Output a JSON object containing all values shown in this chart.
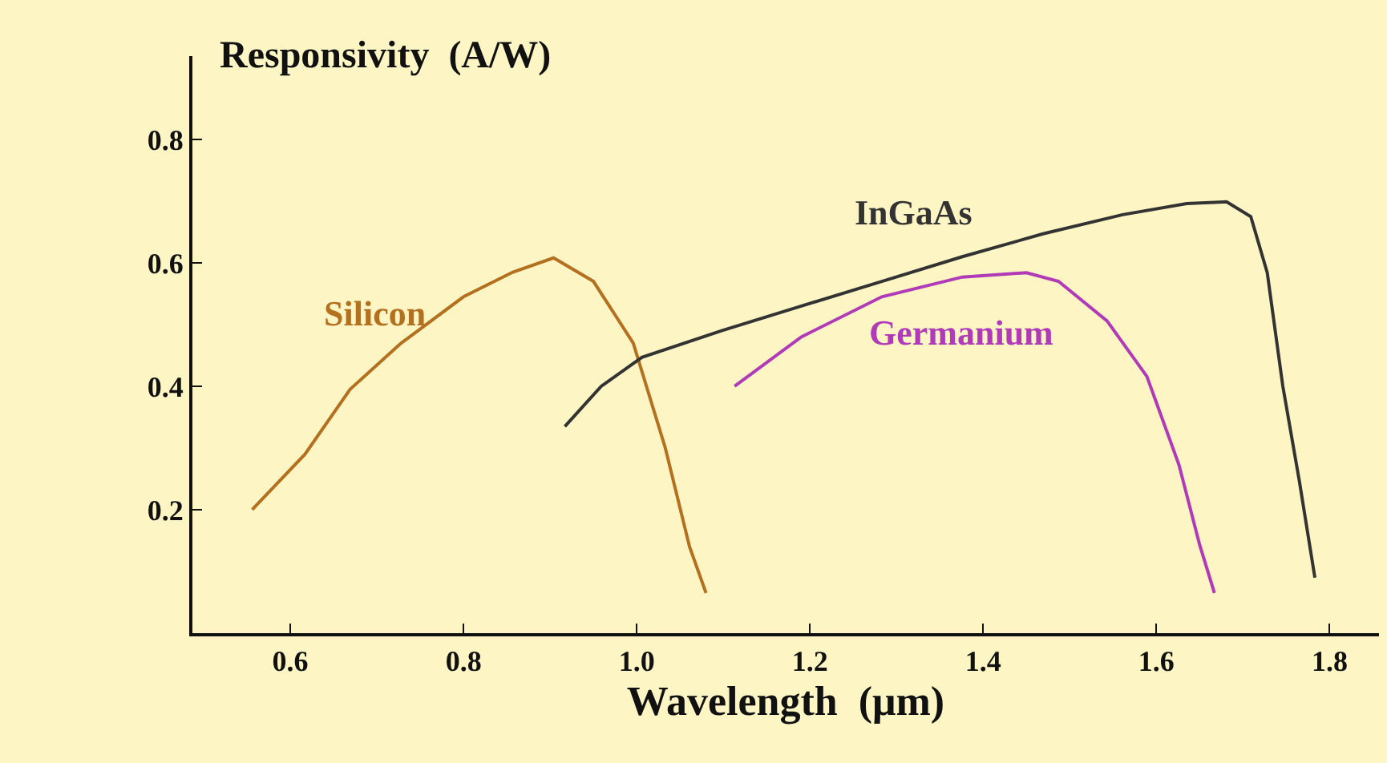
{
  "chart_data": {
    "type": "line",
    "ylabel": "Responsivity  (A/W)",
    "xlabel": "Wavelength  (μm)",
    "xlim": [
      0.487,
      1.857
    ],
    "ylim": [
      0,
      0.935
    ],
    "xticks": [
      0.6,
      0.8,
      {
        "value": 1,
        "label": "1.0"
      },
      1.2,
      1.4,
      1.6,
      1.8
    ],
    "yticks": [
      0.2,
      0.4,
      0.6,
      0.8
    ],
    "grid": false,
    "legend": false,
    "marker": "none",
    "line_style": "solid",
    "series": [
      {
        "name": "Silicon",
        "color": "#b5701f",
        "x": [
          0.556,
          0.617,
          0.669,
          0.728,
          0.8,
          0.857,
          0.904,
          0.95,
          0.996,
          1.033,
          1.061,
          1.08
        ],
        "values": [
          0.2,
          0.29,
          0.395,
          0.47,
          0.545,
          0.585,
          0.608,
          0.57,
          0.47,
          0.3,
          0.14,
          0.065
        ]
      },
      {
        "name": "InGaAs",
        "color": "#333333",
        "x": [
          0.917,
          0.959,
          1.006,
          1.098,
          1.19,
          1.283,
          1.376,
          1.469,
          1.561,
          1.635,
          1.681,
          1.709,
          1.728,
          1.746,
          1.765,
          1.783
        ],
        "values": [
          0.335,
          0.4,
          0.447,
          0.49,
          0.53,
          0.57,
          0.61,
          0.647,
          0.678,
          0.696,
          0.699,
          0.675,
          0.584,
          0.4,
          0.247,
          0.09
        ]
      },
      {
        "name": "Germanium",
        "color": "#b03ab8",
        "x": [
          1.113,
          1.19,
          1.283,
          1.376,
          1.45,
          1.487,
          1.543,
          1.589,
          1.626,
          1.65,
          1.667
        ],
        "values": [
          0.4,
          0.48,
          0.545,
          0.577,
          0.584,
          0.57,
          0.506,
          0.416,
          0.273,
          0.143,
          0.065
        ]
      }
    ]
  }
}
